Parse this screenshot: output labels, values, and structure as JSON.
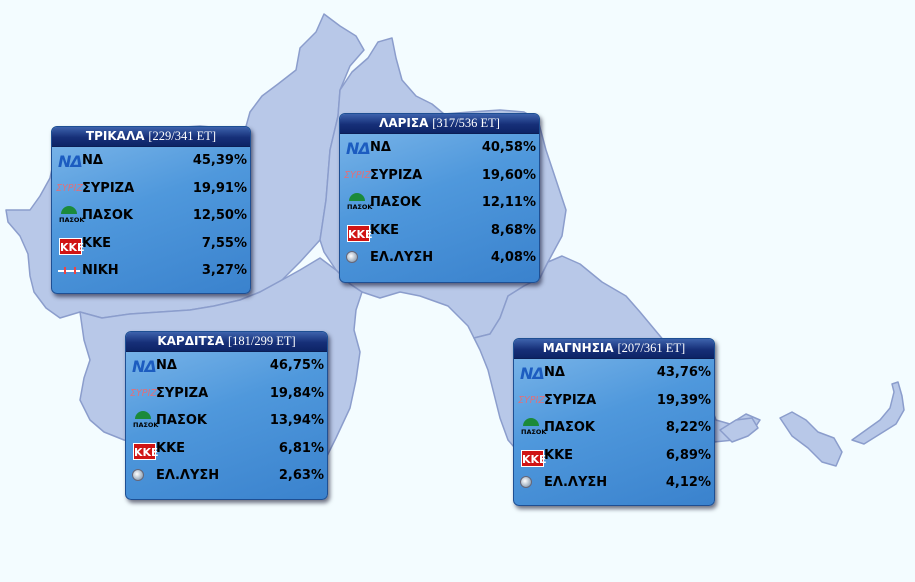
{
  "colors": {
    "background": "#f3fcff",
    "region_fill": "#b7c8e8",
    "region_border": "#8a9ccc",
    "header_bg": "#162f78",
    "box_bg": "#4f98dc"
  },
  "regions": [
    {
      "name": "ΤΡΙΚΑΛΑ",
      "counted": "[229/341 ΕΤ]",
      "parties": [
        {
          "logo": "nd-logo",
          "logo_text": "ΝΔ",
          "name": "ΝΔ",
          "pct": "45,39%"
        },
        {
          "logo": "syriza-logo",
          "logo_text": "ΣΥΡΙΖ",
          "name": "ΣΥΡΙΖΑ",
          "pct": "19,91%"
        },
        {
          "logo": "pasok-logo",
          "logo_text": "ΠΑΣΟΚ",
          "name": "ΠΑΣΟΚ",
          "pct": "12,50%"
        },
        {
          "logo": "kke-logo",
          "logo_text": "ΚΚΕ",
          "name": "ΚΚΕ",
          "pct": "7,55%"
        },
        {
          "logo": "niki-logo",
          "logo_text": "",
          "name": "ΝΙΚΗ",
          "pct": "3,27%"
        }
      ]
    },
    {
      "name": "ΛΑΡΙΣΑ",
      "counted": "[317/536 ΕΤ]",
      "parties": [
        {
          "logo": "nd-logo",
          "logo_text": "ΝΔ",
          "name": "ΝΔ",
          "pct": "40,58%"
        },
        {
          "logo": "syriza-logo",
          "logo_text": "ΣΥΡΙΖ",
          "name": "ΣΥΡΙΖΑ",
          "pct": "19,60%"
        },
        {
          "logo": "pasok-logo",
          "logo_text": "ΠΑΣΟΚ",
          "name": "ΠΑΣΟΚ",
          "pct": "12,11%"
        },
        {
          "logo": "kke-logo",
          "logo_text": "ΚΚΕ",
          "name": "ΚΚΕ",
          "pct": "8,68%"
        },
        {
          "logo": "elliniki-lysi-logo",
          "logo_text": "",
          "name": "ΕΛ.ΛΥΣΗ",
          "pct": "4,08%"
        }
      ]
    },
    {
      "name": "ΚΑΡΔΙΤΣΑ",
      "counted": "[181/299 ΕΤ]",
      "parties": [
        {
          "logo": "nd-logo",
          "logo_text": "ΝΔ",
          "name": "ΝΔ",
          "pct": "46,75%"
        },
        {
          "logo": "syriza-logo",
          "logo_text": "ΣΥΡΙΖ",
          "name": "ΣΥΡΙΖΑ",
          "pct": "19,84%"
        },
        {
          "logo": "pasok-logo",
          "logo_text": "ΠΑΣΟΚ",
          "name": "ΠΑΣΟΚ",
          "pct": "13,94%"
        },
        {
          "logo": "kke-logo",
          "logo_text": "ΚΚΕ",
          "name": "ΚΚΕ",
          "pct": "6,81%"
        },
        {
          "logo": "elliniki-lysi-logo",
          "logo_text": "",
          "name": "ΕΛ.ΛΥΣΗ",
          "pct": "2,63%"
        }
      ]
    },
    {
      "name": "ΜΑΓΝΗΣΙΑ",
      "counted": "[207/361 ΕΤ]",
      "parties": [
        {
          "logo": "nd-logo",
          "logo_text": "ΝΔ",
          "name": "ΝΔ",
          "pct": "43,76%"
        },
        {
          "logo": "syriza-logo",
          "logo_text": "ΣΥΡΙΖ",
          "name": "ΣΥΡΙΖΑ",
          "pct": "19,39%"
        },
        {
          "logo": "pasok-logo",
          "logo_text": "ΠΑΣΟΚ",
          "name": "ΠΑΣΟΚ",
          "pct": "8,22%"
        },
        {
          "logo": "kke-logo",
          "logo_text": "ΚΚΕ",
          "name": "ΚΚΕ",
          "pct": "6,89%"
        },
        {
          "logo": "elliniki-lysi-logo",
          "logo_text": "",
          "name": "ΕΛ.ΛΥΣΗ",
          "pct": "4,12%"
        }
      ]
    }
  ]
}
